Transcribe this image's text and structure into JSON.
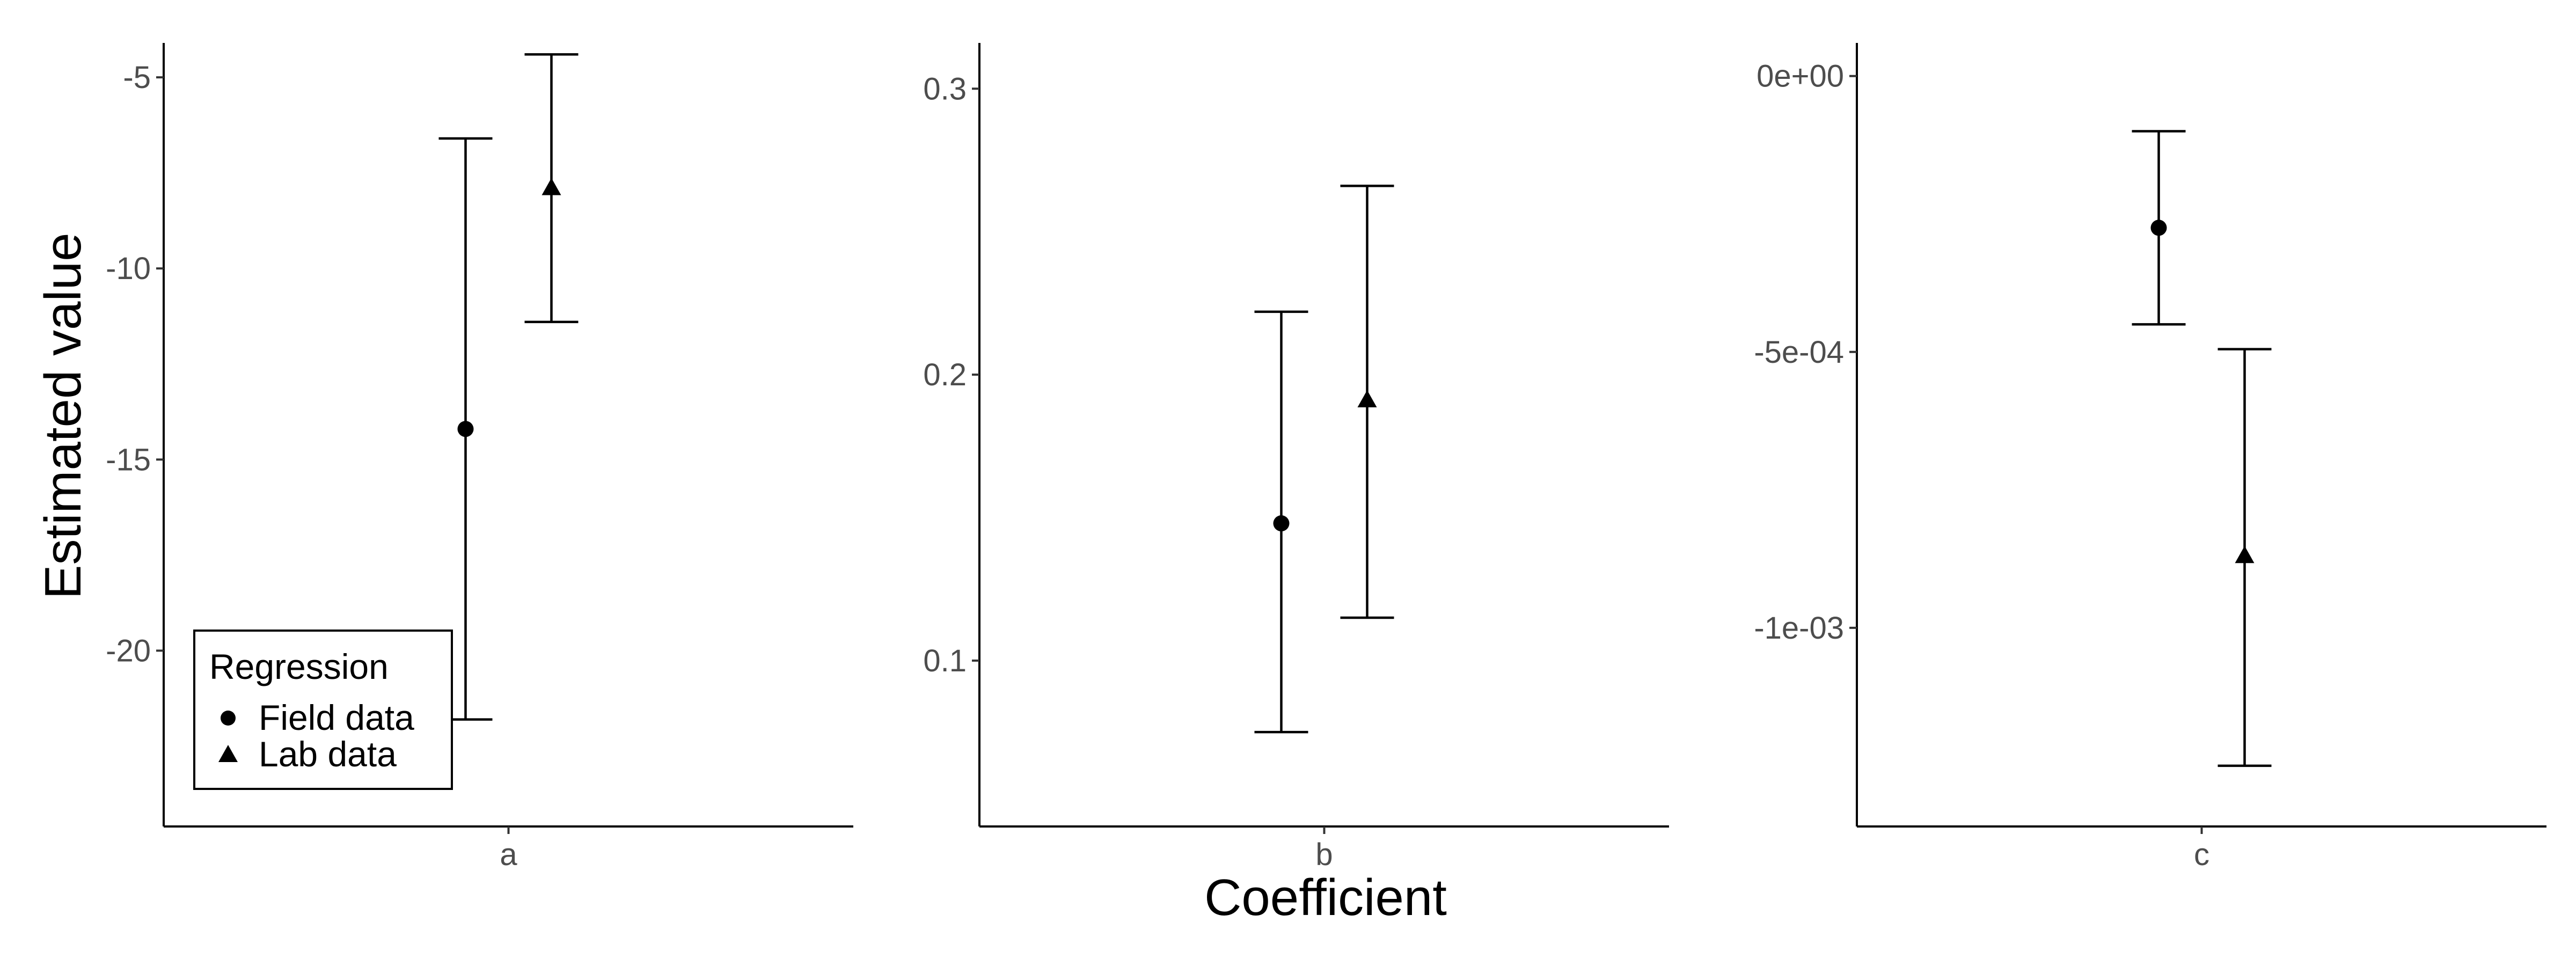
{
  "chart_data": {
    "type": "errorbar",
    "xlabel": "Coefficient",
    "ylabel": "Estimated value",
    "legend": {
      "title": "Regression",
      "placement": "bottom-left inside first panel",
      "entries": [
        {
          "label": "Field data",
          "shape": "circle"
        },
        {
          "label": "Lab data",
          "shape": "triangle"
        }
      ]
    },
    "grid": false,
    "panels": [
      {
        "category": "a",
        "ylim": [
          -24.6,
          -4.1
        ],
        "yticks": [
          {
            "value": -5,
            "label": "-5"
          },
          {
            "value": -10,
            "label": "-10"
          },
          {
            "value": -15,
            "label": "-15"
          },
          {
            "value": -20,
            "label": "-20"
          }
        ],
        "series": [
          {
            "name": "Field data",
            "estimate": -14.2,
            "lower": -21.8,
            "upper": -6.6
          },
          {
            "name": "Lab data",
            "estimate": -7.9,
            "lower": -11.4,
            "upper": -4.4
          }
        ]
      },
      {
        "category": "b",
        "ylim": [
          0.042,
          0.316
        ],
        "yticks": [
          {
            "value": 0.3,
            "label": "0.3"
          },
          {
            "value": 0.2,
            "label": "0.2"
          },
          {
            "value": 0.1,
            "label": "0.1"
          }
        ],
        "series": [
          {
            "name": "Field data",
            "estimate": 0.148,
            "lower": 0.075,
            "upper": 0.222
          },
          {
            "name": "Lab data",
            "estimate": 0.191,
            "lower": 0.115,
            "upper": 0.266
          }
        ]
      },
      {
        "category": "c",
        "ylim": [
          -0.00136,
          6e-05
        ],
        "yticks": [
          {
            "value": 0,
            "label": "0e+00"
          },
          {
            "value": -0.0005,
            "label": "-5e-04"
          },
          {
            "value": -0.001,
            "label": "-1e-03"
          }
        ],
        "series": [
          {
            "name": "Field data",
            "estimate": -0.000275,
            "lower": -0.00045,
            "upper": -0.0001
          },
          {
            "name": "Lab data",
            "estimate": -0.00087,
            "lower": -0.00125,
            "upper": -0.000495
          }
        ]
      }
    ]
  }
}
